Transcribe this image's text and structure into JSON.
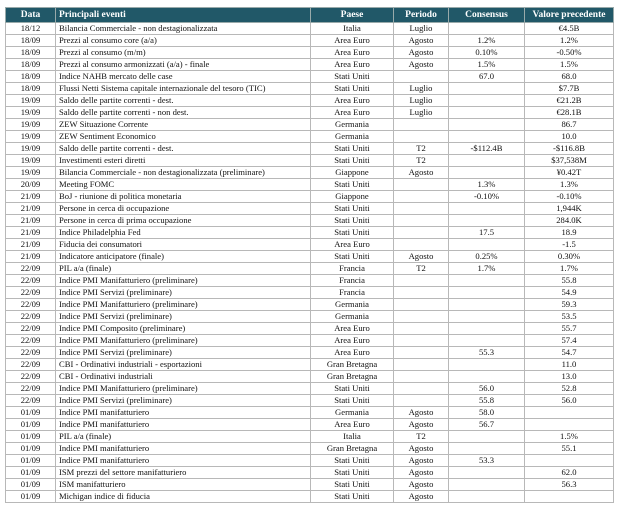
{
  "table": {
    "headers": [
      "Data",
      "Principali eventi",
      "Paese",
      "Periodo",
      "Consensus",
      "Valore precedente"
    ],
    "rows": [
      [
        "18/12",
        "Bilancia Commerciale - non destagionalizzata",
        "Italia",
        "Luglio",
        null,
        "€4.5B"
      ],
      [
        "18/09",
        "Prezzi al consumo core (a/a)",
        "Area Euro",
        "Agosto",
        "1.2%",
        "1.2%"
      ],
      [
        "18/09",
        "Prezzi al consumo (m/m)",
        "Area Euro",
        "Agosto",
        "0.10%",
        "-0.50%"
      ],
      [
        "18/09",
        "Prezzi al consumo armonizzati (a/a) - finale",
        "Area Euro",
        "Agosto",
        "1.5%",
        "1.5%"
      ],
      [
        "18/09",
        "Indice NAHB mercato delle case",
        "Stati Uniti",
        null,
        "67.0",
        "68.0"
      ],
      [
        "18/09",
        "Flussi Netti Sistema capitale internazionale del tesoro (TIC)",
        "Stati Uniti",
        "Luglio",
        null,
        "$7.7B"
      ],
      [
        "19/09",
        "Saldo delle partite correnti - dest.",
        "Area Euro",
        "Luglio",
        null,
        "€21.2B"
      ],
      [
        "19/09",
        "Saldo delle partite correnti - non dest.",
        "Area Euro",
        "Luglio",
        null,
        "€28.1B"
      ],
      [
        "19/09",
        "ZEW Situazione Corrente",
        "Germania",
        null,
        null,
        "86.7"
      ],
      [
        "19/09",
        "ZEW Sentiment Economico",
        "Germania",
        null,
        null,
        "10.0"
      ],
      [
        "19/09",
        "Saldo delle partite correnti - dest.",
        "Stati Uniti",
        "T2",
        "-$112.4B",
        "-$116.8B"
      ],
      [
        "19/09",
        "Investimenti esteri diretti",
        "Stati Uniti",
        "T2",
        null,
        "$37,538M"
      ],
      [
        "19/09",
        "Bilancia Commerciale - non destagionalizzata (preliminare)",
        "Giappone",
        "Agosto",
        null,
        "¥0.42T"
      ],
      [
        "20/09",
        "Meeting FOMC",
        "Stati Uniti",
        null,
        "1.3%",
        "1.3%"
      ],
      [
        "21/09",
        "BoJ - riunione di politica monetaria",
        "Giappone",
        null,
        "-0.10%",
        "-0.10%"
      ],
      [
        "21/09",
        "Persone in cerca di occupazione",
        "Stati Uniti",
        null,
        null,
        "1,944K"
      ],
      [
        "21/09",
        "Persone in cerca di prima occupazione",
        "Stati Uniti",
        null,
        null,
        "284.0K"
      ],
      [
        "21/09",
        "Indice Philadelphia Fed",
        "Stati Uniti",
        null,
        "17.5",
        "18.9"
      ],
      [
        "21/09",
        "Fiducia dei consumatori",
        "Area Euro",
        null,
        null,
        "-1.5"
      ],
      [
        "21/09",
        "Indicatore anticipatore (finale)",
        "Stati Uniti",
        "Agosto",
        "0.25%",
        "0.30%"
      ],
      [
        "22/09",
        "PIL a/a (finale)",
        "Francia",
        "T2",
        "1.7%",
        "1.7%"
      ],
      [
        "22/09",
        "Indice PMI Manifatturiero (preliminare)",
        "Francia",
        null,
        null,
        "55.8"
      ],
      [
        "22/09",
        "Indice PMI Servizi (preliminare)",
        "Francia",
        null,
        null,
        "54.9"
      ],
      [
        "22/09",
        "Indice PMI Manifatturiero (preliminare)",
        "Germania",
        null,
        null,
        "59.3"
      ],
      [
        "22/09",
        "Indice PMI Servizi (preliminare)",
        "Germania",
        null,
        null,
        "53.5"
      ],
      [
        "22/09",
        "Indice PMI Composito (preliminare)",
        "Area Euro",
        null,
        null,
        "55.7"
      ],
      [
        "22/09",
        "Indice PMI Manifatturiero (preliminare)",
        "Area Euro",
        null,
        null,
        "57.4"
      ],
      [
        "22/09",
        "Indice PMI Servizi (preliminare)",
        "Area Euro",
        null,
        "55.3",
        "54.7"
      ],
      [
        "22/09",
        "CBI - Ordinativi industriali - esportazioni",
        "Gran Bretagna",
        null,
        null,
        "11.0"
      ],
      [
        "22/09",
        "CBI - Ordinativi industriali",
        "Gran Bretagna",
        null,
        null,
        "13.0"
      ],
      [
        "22/09",
        "Indice PMI Manifatturiero (preliminare)",
        "Stati Uniti",
        null,
        "56.0",
        "52.8"
      ],
      [
        "22/09",
        "Indice PMI Servizi (preliminare)",
        "Stati Uniti",
        null,
        "55.8",
        "56.0"
      ],
      [
        "01/09",
        "Indice PMI manifatturiero",
        "Germania",
        "Agosto",
        "58.0",
        null
      ],
      [
        "01/09",
        "Indice PMI manifatturiero",
        "Area Euro",
        "Agosto",
        "56.7",
        null
      ],
      [
        "01/09",
        "PIL a/a (finale)",
        "Italia",
        "T2",
        null,
        "1.5%"
      ],
      [
        "01/09",
        "Indice PMI manifatturiero",
        "Gran Bretagna",
        "Agosto",
        null,
        "55.1"
      ],
      [
        "01/09",
        "Indice PMI manifatturiero",
        "Stati Uniti",
        "Agosto",
        "53.3",
        null
      ],
      [
        "01/09",
        "ISM prezzi del settore manifatturiero",
        "Stati Uniti",
        "Agosto",
        null,
        "62.0"
      ],
      [
        "01/09",
        "ISM manifatturiero",
        "Stati Uniti",
        "Agosto",
        null,
        "56.3"
      ],
      [
        "01/09",
        "Michigan indice di fiducia",
        "Stati Uniti",
        "Agosto",
        null,
        null
      ]
    ]
  }
}
